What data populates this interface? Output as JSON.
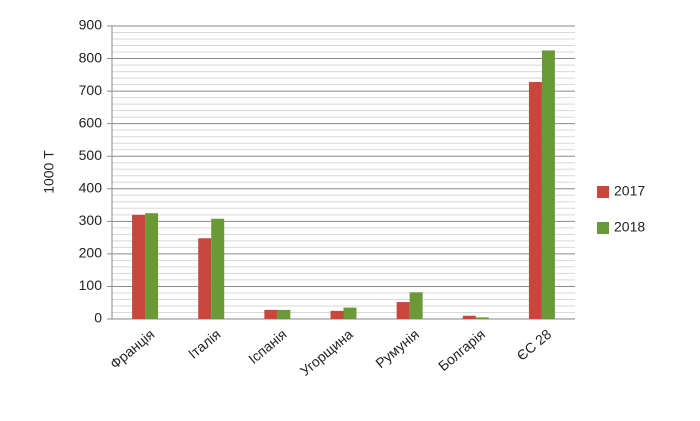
{
  "chart_data": {
    "type": "bar",
    "y_label": "1000 Т",
    "categories": [
      "Франція",
      "Італія",
      "Іспанія",
      "Угорщина",
      "Румунія",
      "Болгарія",
      "ЄС 28"
    ],
    "series": [
      {
        "name": "2017",
        "color": "#c9463d",
        "values": [
          320,
          248,
          28,
          25,
          52,
          10,
          728
        ]
      },
      {
        "name": "2018",
        "color": "#6a9a38",
        "values": [
          325,
          308,
          28,
          35,
          82,
          5,
          825
        ]
      }
    ],
    "ylim": [
      0,
      900
    ],
    "yticks": [
      0,
      100,
      200,
      300,
      400,
      500,
      600,
      700,
      800,
      900
    ],
    "grid": true,
    "legend": "right"
  }
}
